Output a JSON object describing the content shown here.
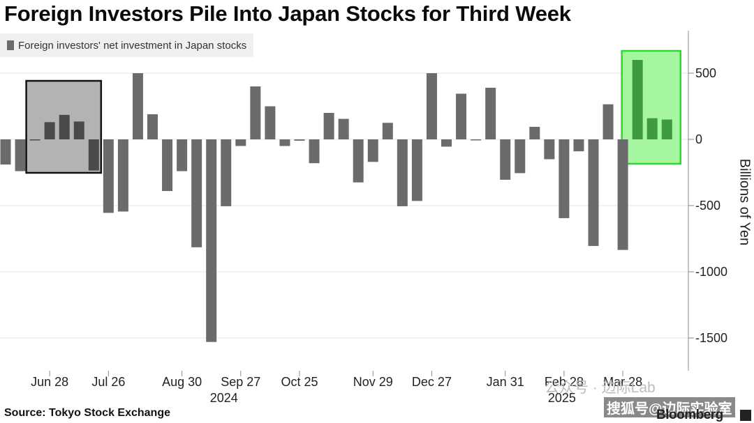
{
  "title": "Foreign Investors Pile Into Japan Stocks for Third Week",
  "source": "Source: Tokyo Stock Exchange",
  "logo": "Bloomberg",
  "watermark_1": "公众号 · 边际Lab",
  "watermark_2": "搜狐号@边际实验室",
  "colors": {
    "bar": "#6b6b6b",
    "highlight_bar": "#3e9a3e",
    "highlight_fill": "#a6f5a0",
    "highlight_border": "#2fd82f",
    "gray_fill": "#b3b3b3",
    "gray_bar": "#4a4a4a",
    "axis": "#888888",
    "grid": "#e6e6e6"
  },
  "chart_data": {
    "type": "bar",
    "title": "Foreign Investors Pile Into Japan Stocks for Third Week",
    "legend": "Foreign investors' net investment in Japan stocks",
    "ylabel": "Billions of Yen",
    "ylim": [
      -1750,
      800
    ],
    "yticks": [
      500,
      0,
      -500,
      -1000,
      -1500
    ],
    "ytick_labels": [
      "500",
      "0",
      "-500",
      "-1000",
      "-1500"
    ],
    "xtick_labels": [
      {
        "label": "Jun 28",
        "week": 3
      },
      {
        "label": "Jul 26",
        "week": 7
      },
      {
        "label": "Aug 30",
        "week": 12
      },
      {
        "label": "Sep 27",
        "week": 16
      },
      {
        "label": "Oct 25",
        "week": 20
      },
      {
        "label": "Nov 29",
        "week": 25
      },
      {
        "label": "Dec 27",
        "week": 29
      },
      {
        "label": "Jan 31",
        "week": 34
      },
      {
        "label": "Feb 28",
        "week": 38
      },
      {
        "label": "Mar 28",
        "week": 42
      }
    ],
    "year_labels": [
      {
        "label": "2024",
        "week": 15
      },
      {
        "label": "2025",
        "week": 38
      }
    ],
    "values": [
      -190,
      -240,
      -5,
      130,
      185,
      135,
      -235,
      -555,
      -545,
      500,
      190,
      -390,
      -240,
      -815,
      -1530,
      -505,
      -50,
      400,
      250,
      -50,
      -10,
      -180,
      200,
      155,
      -325,
      -170,
      125,
      -505,
      -465,
      500,
      -55,
      345,
      -5,
      390,
      -305,
      -255,
      95,
      -150,
      -595,
      -90,
      -805,
      265,
      -835,
      600,
      160,
      150
    ],
    "highlight_gray_weeks": [
      2,
      6
    ],
    "highlight_green_weeks": [
      43,
      45
    ],
    "grid": true,
    "legend_position": "top-left"
  }
}
